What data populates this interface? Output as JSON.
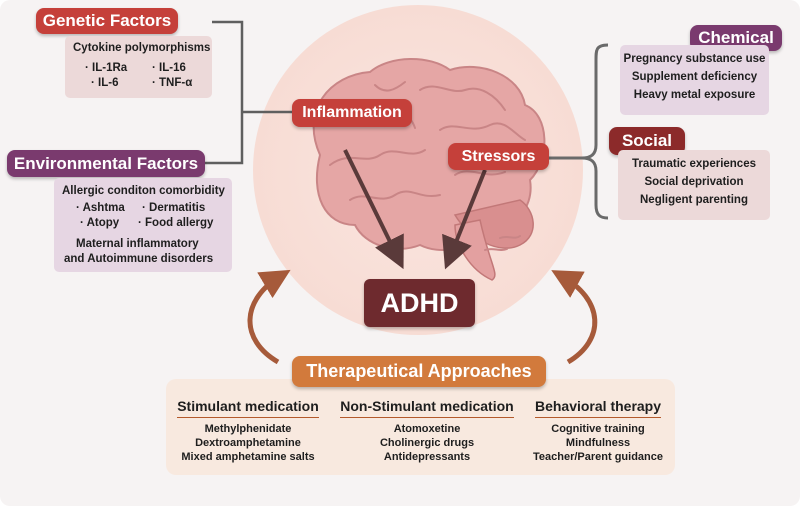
{
  "center": {
    "label": "ADHD",
    "color": "#6e2a2e"
  },
  "inflammation_tag": "Inflammation",
  "stressors_tag": "Stressors",
  "genetic": {
    "title": "Genetic Factors",
    "subtitle": "Cytokine polymorphisms",
    "items": [
      "· IL-1Ra",
      "· IL-16",
      "· IL-6",
      "· TNF-α"
    ]
  },
  "environmental": {
    "title": "Environmental Factors",
    "subtitle": "Allergic conditon comorbidity",
    "items": [
      "· Ashtma",
      "· Dermatitis",
      "· Atopy",
      "· Food allergy"
    ],
    "extra_line1": "Maternal inflammatory",
    "extra_line2": "and  Autoimmune disorders"
  },
  "chemical": {
    "title": "Chemical",
    "items": [
      "Pregnancy substance use",
      "Supplement deficiency",
      "Heavy metal exposure"
    ]
  },
  "social": {
    "title": "Social",
    "items": [
      "Traumatic experiences",
      "Social deprivation",
      "Negligent parenting"
    ]
  },
  "therapeutic": {
    "title": "Therapeutical  Approaches",
    "columns": [
      {
        "heading": "Stimulant medication",
        "items": [
          "Methylphenidate",
          "Dextroamphetamine",
          "Mixed amphetamine salts"
        ]
      },
      {
        "heading": "Non-Stimulant medication",
        "items": [
          "Atomoxetine",
          "Cholinergic drugs",
          "Antidepressants"
        ]
      },
      {
        "heading": "Behavioral therapy",
        "items": [
          "Cognitive training",
          "Mindfulness",
          "Teacher/Parent guidance"
        ]
      }
    ]
  },
  "colors": {
    "red_tag": "#c5403a",
    "dark_red_tag": "#8c2a2a",
    "purple_tag": "#7a3a6e",
    "orange_tag": "#d27a3c",
    "pink_box": "#ecd9d9",
    "lilac_box": "#e6d6e3",
    "peach_box": "#f8e9df",
    "brain": "#e3a0a0",
    "circle": "#fae3dd"
  }
}
